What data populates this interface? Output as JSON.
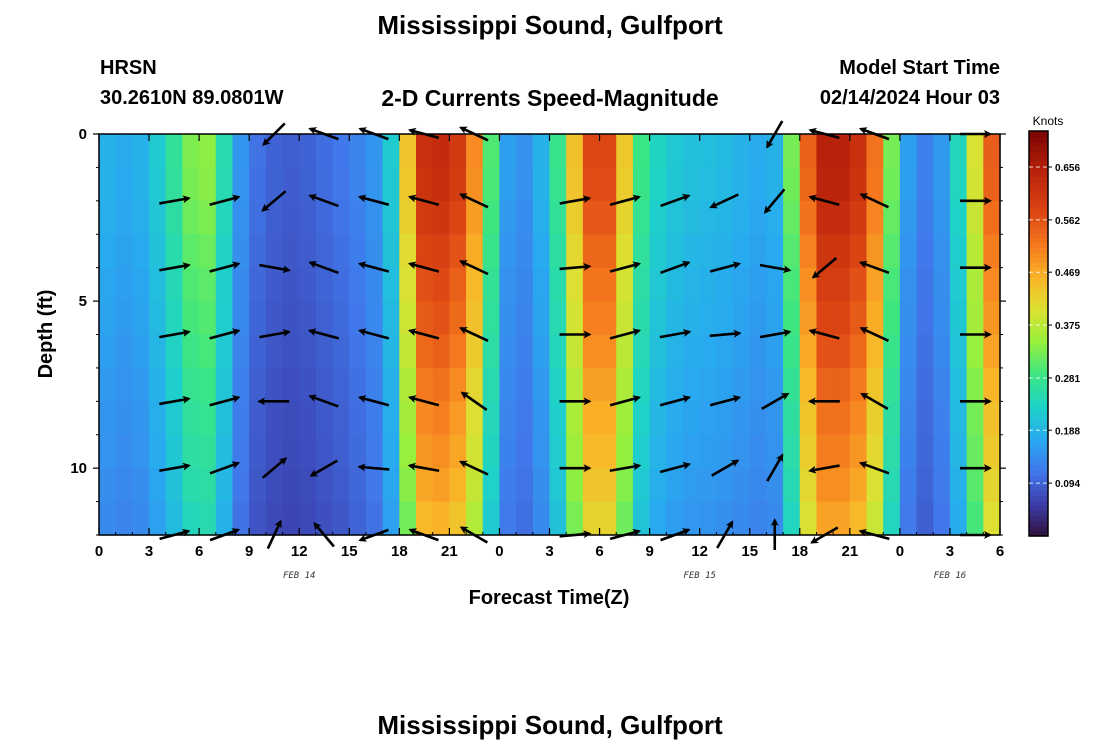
{
  "header": {
    "title": "Mississippi Sound, Gulfport",
    "model": "HRSN",
    "location": "30.2610N  89.0801W",
    "chart_label": "2-D Currents Speed-Magnitude",
    "model_start_label": "Model Start Time",
    "model_start_value": "02/14/2024 Hour 03"
  },
  "footer": {
    "title": "Mississippi Sound, Gulfport"
  },
  "chart_data": {
    "type": "heatmap",
    "title": "2-D Currents Speed-Magnitude",
    "xlabel": "Forecast Time(Z)",
    "ylabel": "Depth (ft)",
    "x_range_hours": [
      0,
      54
    ],
    "y_range_ft": [
      0,
      12
    ],
    "x_ticks": [
      {
        "hour": 0,
        "label": "0"
      },
      {
        "hour": 3,
        "label": "3"
      },
      {
        "hour": 6,
        "label": "6"
      },
      {
        "hour": 9,
        "label": "9"
      },
      {
        "hour": 12,
        "label": "12"
      },
      {
        "hour": 15,
        "label": "15"
      },
      {
        "hour": 18,
        "label": "18"
      },
      {
        "hour": 21,
        "label": "21"
      },
      {
        "hour": 24,
        "label": "0"
      },
      {
        "hour": 27,
        "label": "3"
      },
      {
        "hour": 30,
        "label": "6"
      },
      {
        "hour": 33,
        "label": "9"
      },
      {
        "hour": 36,
        "label": "12"
      },
      {
        "hour": 39,
        "label": "15"
      },
      {
        "hour": 42,
        "label": "18"
      },
      {
        "hour": 45,
        "label": "21"
      },
      {
        "hour": 48,
        "label": "0"
      },
      {
        "hour": 51,
        "label": "3"
      },
      {
        "hour": 54,
        "label": "6"
      }
    ],
    "date_labels": [
      {
        "hour": 12,
        "label": "FEB 14"
      },
      {
        "hour": 36,
        "label": "FEB 15"
      },
      {
        "hour": 51,
        "label": "FEB 16"
      }
    ],
    "y_ticks": [
      {
        "depth": 0,
        "label": "0"
      },
      {
        "depth": 5,
        "label": "5"
      },
      {
        "depth": 10,
        "label": "10"
      }
    ],
    "colorbar": {
      "unit": "Knots",
      "min": 0.0,
      "max": 0.72,
      "ticks": [
        0.094,
        0.188,
        0.281,
        0.375,
        0.469,
        0.562,
        0.656
      ]
    },
    "speed_profile_hourly": [
      0.19,
      0.18,
      0.17,
      0.2,
      0.24,
      0.3,
      0.36,
      0.32,
      0.18,
      0.12,
      0.1,
      0.09,
      0.09,
      0.1,
      0.11,
      0.12,
      0.14,
      0.16,
      0.28,
      0.6,
      0.64,
      0.62,
      0.58,
      0.42,
      0.18,
      0.14,
      0.15,
      0.22,
      0.34,
      0.55,
      0.6,
      0.55,
      0.32,
      0.25,
      0.22,
      0.21,
      0.2,
      0.2,
      0.19,
      0.18,
      0.17,
      0.2,
      0.45,
      0.64,
      0.66,
      0.64,
      0.6,
      0.45,
      0.2,
      0.12,
      0.13,
      0.18,
      0.3,
      0.5,
      0.6
    ],
    "depth_factors": [
      1.0,
      1.0,
      0.98,
      0.95,
      0.92,
      0.9,
      0.88,
      0.85,
      0.82,
      0.8,
      0.78,
      0.75,
      0.72
    ],
    "vector_depths_ft": [
      0,
      2,
      4,
      6,
      8,
      10,
      12
    ],
    "vectors": [
      {
        "depth": 0,
        "hours": [
          10.5,
          13.5,
          16.5,
          19.5,
          22.5,
          40.5,
          43.5,
          46.5,
          52.5
        ],
        "angles_deg": [
          -135,
          160,
          160,
          165,
          155,
          -120,
          165,
          160,
          0
        ]
      },
      {
        "depth": 2,
        "hours": [
          4.5,
          7.5,
          10.5,
          13.5,
          16.5,
          19.5,
          22.5,
          28.5,
          31.5,
          34.5,
          37.5,
          40.5,
          43.5,
          46.5,
          52.5
        ],
        "angles_deg": [
          10,
          15,
          -140,
          160,
          165,
          165,
          155,
          10,
          15,
          20,
          -155,
          -130,
          165,
          155,
          0
        ]
      },
      {
        "depth": 4,
        "hours": [
          4.5,
          7.5,
          10.5,
          13.5,
          16.5,
          19.5,
          22.5,
          28.5,
          31.5,
          34.5,
          37.5,
          40.5,
          43.5,
          46.5,
          52.5
        ],
        "angles_deg": [
          10,
          15,
          -10,
          160,
          165,
          165,
          155,
          5,
          15,
          20,
          15,
          -10,
          -140,
          160,
          0
        ]
      },
      {
        "depth": 6,
        "hours": [
          4.5,
          7.5,
          10.5,
          13.5,
          16.5,
          19.5,
          22.5,
          28.5,
          31.5,
          34.5,
          37.5,
          40.5,
          43.5,
          46.5,
          52.5
        ],
        "angles_deg": [
          10,
          15,
          10,
          165,
          165,
          165,
          155,
          0,
          15,
          10,
          5,
          10,
          165,
          155,
          0
        ]
      },
      {
        "depth": 8,
        "hours": [
          4.5,
          7.5,
          10.5,
          13.5,
          16.5,
          19.5,
          22.5,
          28.5,
          31.5,
          34.5,
          37.5,
          40.5,
          43.5,
          46.5,
          52.5
        ],
        "angles_deg": [
          10,
          15,
          180,
          160,
          165,
          165,
          145,
          0,
          15,
          15,
          15,
          30,
          180,
          150,
          0
        ]
      },
      {
        "depth": 10,
        "hours": [
          4.5,
          7.5,
          10.5,
          13.5,
          16.5,
          19.5,
          22.5,
          28.5,
          31.5,
          34.5,
          37.5,
          40.5,
          43.5,
          46.5,
          52.5
        ],
        "angles_deg": [
          10,
          20,
          40,
          -150,
          175,
          170,
          155,
          0,
          10,
          15,
          30,
          60,
          -170,
          160,
          0
        ]
      },
      {
        "depth": 12,
        "hours": [
          4.5,
          7.5,
          10.5,
          13.5,
          16.5,
          19.5,
          22.5,
          28.5,
          31.5,
          34.5,
          37.5,
          40.5,
          43.5,
          46.5,
          52.5
        ],
        "angles_deg": [
          15,
          20,
          65,
          130,
          -160,
          160,
          150,
          5,
          15,
          20,
          60,
          90,
          -150,
          165,
          0
        ]
      }
    ]
  }
}
